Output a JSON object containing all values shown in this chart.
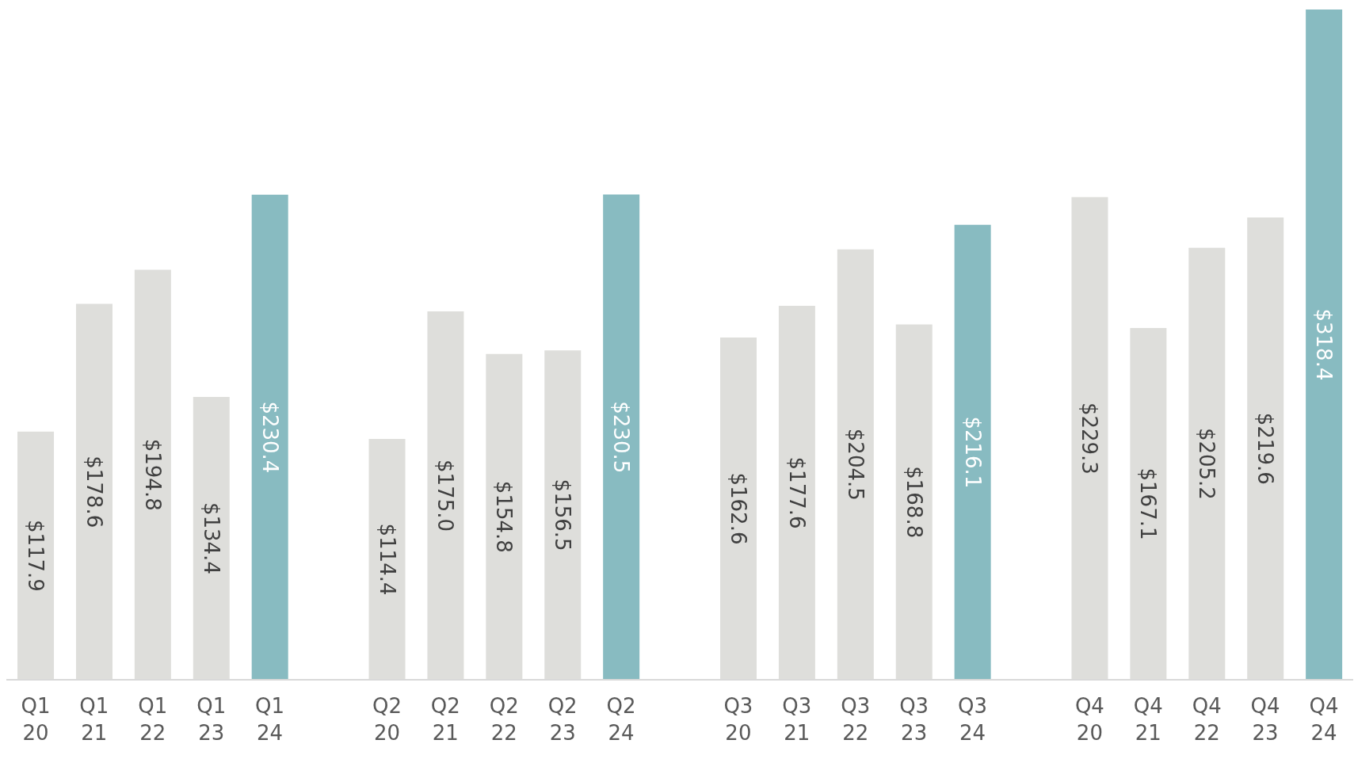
{
  "chart_data": {
    "type": "bar",
    "categories": [
      "Q1\n20",
      "Q1\n21",
      "Q1\n22",
      "Q1\n23",
      "Q1\n24",
      null,
      "Q2\n20",
      "Q2\n21",
      "Q2\n22",
      "Q2\n23",
      "Q2\n24",
      null,
      "Q3\n20",
      "Q3\n21",
      "Q3\n22",
      "Q3\n23",
      "Q3\n24",
      null,
      "Q4\n20",
      "Q4\n21",
      "Q4\n22",
      "Q4\n23",
      "Q4\n24"
    ],
    "values": [
      117.9,
      178.6,
      194.8,
      134.4,
      230.4,
      null,
      114.4,
      175.0,
      154.8,
      156.5,
      230.5,
      null,
      162.6,
      177.6,
      204.5,
      168.8,
      216.1,
      null,
      229.3,
      167.1,
      205.2,
      219.6,
      318.4
    ],
    "value_labels": [
      "$117.9",
      "$178.6",
      "$194.8",
      "$134.4",
      "$230.4",
      null,
      "$114.4",
      "$175.0",
      "$154.8",
      "$156.5",
      "$230.5",
      null,
      "$162.6",
      "$177.6",
      "$204.5",
      "$168.8",
      "$216.1",
      null,
      "$229.3",
      "$167.1",
      "$205.2",
      "$219.6",
      "$318.4"
    ],
    "colors": [
      "#dededb",
      "#dededb",
      "#dededb",
      "#dededb",
      "#88bbc1",
      null,
      "#dededb",
      "#dededb",
      "#dededb",
      "#dededb",
      "#88bbc1",
      null,
      "#dededb",
      "#dededb",
      "#dededb",
      "#dededb",
      "#88bbc1",
      null,
      "#dededb",
      "#dededb",
      "#dededb",
      "#dededb",
      "#88bbc1"
    ],
    "grid": false
  }
}
